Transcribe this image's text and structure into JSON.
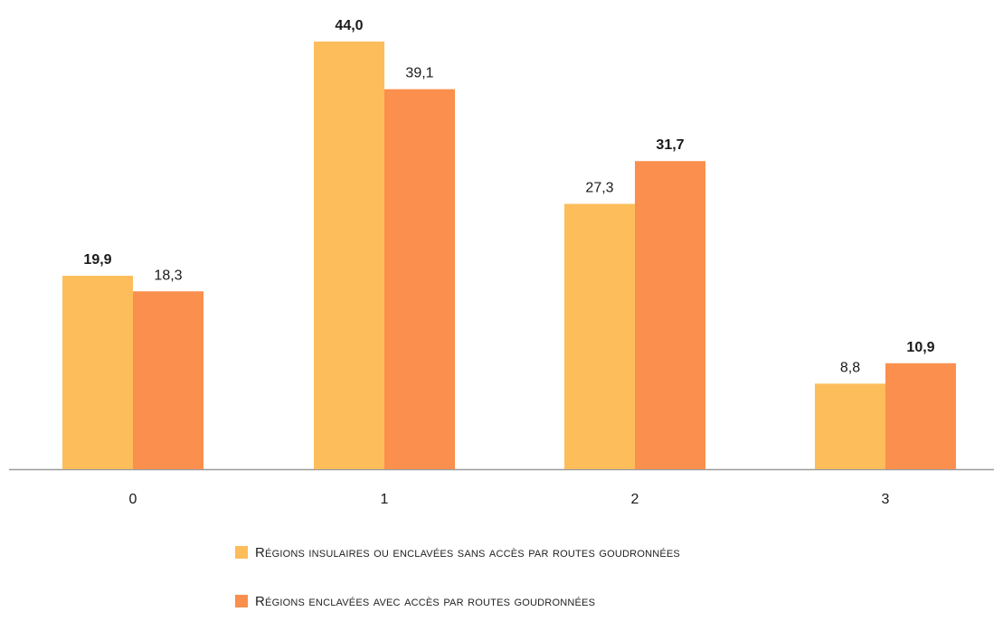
{
  "chart_data": {
    "type": "bar",
    "categories": [
      "0",
      "1",
      "2",
      "3"
    ],
    "series": [
      {
        "name": "Régions insulaires ou enclavées sans accès par routes goudronnées",
        "values": [
          19.9,
          44.0,
          27.3,
          8.8
        ],
        "labels": [
          "19,9",
          "44,0",
          "27,3",
          "8,8"
        ],
        "bold": [
          true,
          true,
          false,
          false
        ],
        "color": "#FDBD5B"
      },
      {
        "name": "Régions enclavées avec accès par routes goudronnées",
        "values": [
          18.3,
          39.1,
          31.7,
          10.9
        ],
        "labels": [
          "18,3",
          "39,1",
          "31,7",
          "10,9"
        ],
        "bold": [
          false,
          false,
          true,
          true
        ],
        "color": "#FB8F4D"
      }
    ],
    "ylim": [
      0,
      50
    ],
    "grid": false,
    "legend_position": "bottom",
    "axis_color": "#9a9a9a"
  }
}
